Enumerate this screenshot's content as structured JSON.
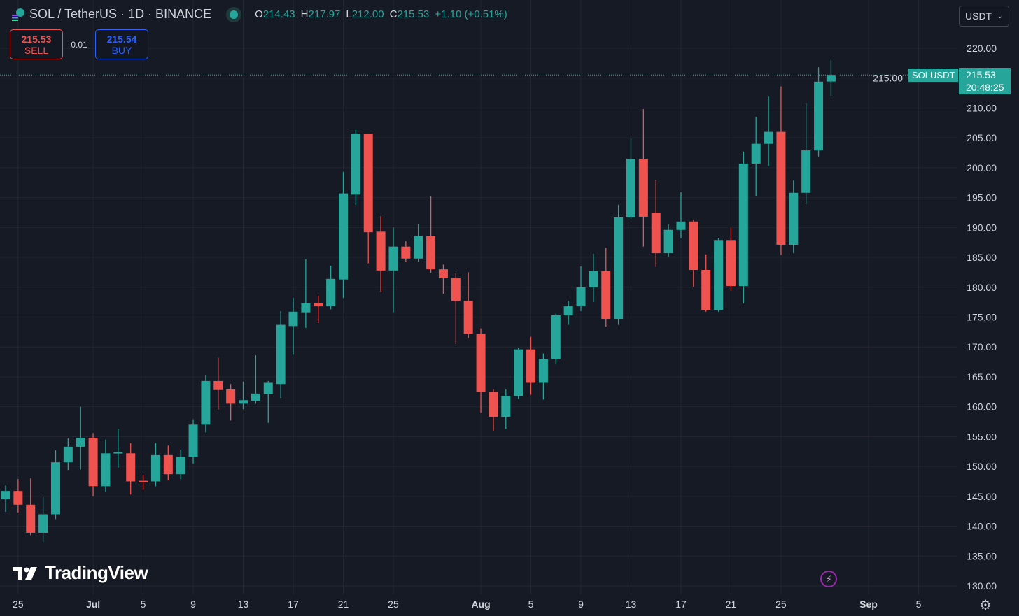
{
  "header": {
    "title": "SOL / TetherUS · 1D · BINANCE",
    "ohlc": {
      "o_label": "O",
      "o": "214.43",
      "h_label": "H",
      "h": "217.97",
      "l_label": "L",
      "l": "212.00",
      "c_label": "C",
      "c": "215.53",
      "change": "+1.10 (+0.51%)"
    }
  },
  "trade": {
    "sell_price": "215.53",
    "sell_label": "SELL",
    "spread": "0.01",
    "buy_price": "215.54",
    "buy_label": "BUY"
  },
  "currency_select": "USDT",
  "price_tag": {
    "symbol": "SOLUSDT",
    "price": "215.53",
    "countdown": "20:48:25"
  },
  "logo": "TradingView",
  "icons": {
    "lightning": "lightning-icon",
    "settings": "gear-icon",
    "symbol": "solana-icon",
    "chevron": "chevron-down-icon"
  },
  "colors": {
    "background": "#161a25",
    "up": "#26a69a",
    "down": "#ef5350",
    "grid": "#232632",
    "buy": "#2962ff"
  },
  "chart_data": {
    "type": "candlestick",
    "title": "SOL / TetherUS · 1D · BINANCE",
    "ylim": [
      130,
      220
    ],
    "grid": true,
    "yticks": [
      "130.00",
      "135.00",
      "140.00",
      "145.00",
      "150.00",
      "155.00",
      "160.00",
      "165.00",
      "170.00",
      "175.00",
      "180.00",
      "185.00",
      "190.00",
      "195.00",
      "200.00",
      "205.00",
      "210.00",
      "215.00",
      "220.00"
    ],
    "xticks": [
      {
        "label": "25",
        "date": "Jun 25"
      },
      {
        "label": "Jul",
        "date": "Jul 1"
      },
      {
        "label": "5",
        "date": "Jul 5"
      },
      {
        "label": "9",
        "date": "Jul 9"
      },
      {
        "label": "13",
        "date": "Jul 13"
      },
      {
        "label": "17",
        "date": "Jul 17"
      },
      {
        "label": "21",
        "date": "Jul 21"
      },
      {
        "label": "25",
        "date": "Jul 25"
      },
      {
        "label": "Aug",
        "date": "Aug 1"
      },
      {
        "label": "5",
        "date": "Aug 5"
      },
      {
        "label": "9",
        "date": "Aug 9"
      },
      {
        "label": "13",
        "date": "Aug 13"
      },
      {
        "label": "17",
        "date": "Aug 17"
      },
      {
        "label": "21",
        "date": "Aug 21"
      },
      {
        "label": "25",
        "date": "Aug 25"
      },
      {
        "label": "Sep",
        "date": "Sep 1"
      },
      {
        "label": "5",
        "date": "Sep 5"
      }
    ],
    "last_price": 215.53,
    "candles_fields": [
      "date",
      "open",
      "high",
      "low",
      "close"
    ],
    "candles": [
      [
        "Jun 24",
        144.5,
        146.8,
        142.4,
        145.9
      ],
      [
        "Jun 25",
        145.9,
        147.9,
        142.3,
        143.6
      ],
      [
        "Jun 26",
        143.6,
        148.0,
        138.5,
        138.9
      ],
      [
        "Jun 27",
        138.9,
        144.9,
        137.3,
        142.0
      ],
      [
        "Jun 28",
        142.0,
        152.7,
        141.2,
        150.7
      ],
      [
        "Jun 29",
        150.7,
        154.7,
        149.4,
        153.3
      ],
      [
        "Jun 30",
        153.3,
        160.0,
        149.5,
        154.8
      ],
      [
        "Jul 1",
        154.8,
        155.6,
        145.0,
        146.7
      ],
      [
        "Jul 2",
        146.7,
        154.5,
        145.8,
        152.2
      ],
      [
        "Jul 3",
        152.2,
        156.3,
        149.8,
        152.4
      ],
      [
        "Jul 4",
        152.2,
        153.9,
        145.3,
        147.5
      ],
      [
        "Jul 5",
        147.6,
        148.6,
        146.1,
        147.4
      ],
      [
        "Jul 6",
        147.5,
        153.9,
        146.7,
        151.9
      ],
      [
        "Jul 7",
        151.9,
        153.5,
        147.7,
        148.7
      ],
      [
        "Jul 8",
        148.7,
        152.8,
        147.9,
        151.6
      ],
      [
        "Jul 9",
        151.6,
        157.9,
        150.5,
        157.0
      ],
      [
        "Jul 10",
        157.0,
        165.3,
        155.7,
        164.3
      ],
      [
        "Jul 11",
        164.3,
        168.2,
        159.5,
        162.8
      ],
      [
        "Jul 12",
        162.9,
        163.8,
        157.7,
        160.5
      ],
      [
        "Jul 13",
        160.5,
        164.2,
        159.6,
        161.1
      ],
      [
        "Jul 14",
        161.0,
        168.6,
        160.5,
        162.2
      ],
      [
        "Jul 15",
        162.1,
        164.3,
        157.3,
        164.0
      ],
      [
        "Jul 16",
        163.8,
        176.0,
        161.5,
        173.7
      ],
      [
        "Jul 17",
        173.5,
        178.2,
        168.7,
        175.9
      ],
      [
        "Jul 18",
        175.8,
        184.7,
        173.2,
        177.3
      ],
      [
        "Jul 19",
        177.3,
        178.6,
        174.0,
        176.8
      ],
      [
        "Jul 20",
        176.8,
        183.6,
        176.3,
        181.4
      ],
      [
        "Jul 21",
        181.3,
        199.3,
        178.2,
        195.7
      ],
      [
        "Jul 22",
        195.5,
        206.3,
        193.8,
        205.7
      ],
      [
        "Jul 23",
        205.7,
        205.7,
        184.0,
        189.2
      ],
      [
        "Jul 24",
        189.3,
        191.9,
        179.2,
        182.8
      ],
      [
        "Jul 25",
        182.8,
        190.0,
        175.8,
        186.8
      ],
      [
        "Jul 26",
        186.8,
        187.7,
        184.2,
        184.8
      ],
      [
        "Jul 27",
        184.8,
        190.6,
        184.3,
        188.6
      ],
      [
        "Jul 28",
        188.6,
        195.2,
        182.4,
        183.0
      ],
      [
        "Jul 29",
        183.0,
        183.8,
        178.9,
        181.5
      ],
      [
        "Jul 30",
        181.5,
        182.3,
        170.5,
        177.7
      ],
      [
        "Jul 31",
        177.7,
        182.5,
        171.5,
        172.2
      ],
      [
        "Aug 1",
        172.2,
        173.1,
        159.0,
        162.5
      ],
      [
        "Aug 2",
        162.5,
        162.9,
        156.0,
        158.3
      ],
      [
        "Aug 3",
        158.3,
        162.9,
        156.3,
        161.8
      ],
      [
        "Aug 4",
        161.8,
        169.9,
        161.3,
        169.6
      ],
      [
        "Aug 5",
        169.6,
        171.7,
        162.0,
        164.0
      ],
      [
        "Aug 6",
        164.0,
        168.9,
        161.2,
        168.0
      ],
      [
        "Aug 7",
        168.0,
        175.6,
        167.2,
        175.3
      ],
      [
        "Aug 8",
        175.3,
        177.7,
        173.7,
        176.8
      ],
      [
        "Aug 9",
        176.8,
        183.5,
        176.0,
        180.0
      ],
      [
        "Aug 10",
        180.0,
        185.6,
        177.5,
        182.7
      ],
      [
        "Aug 11",
        182.7,
        186.6,
        173.4,
        174.7
      ],
      [
        "Aug 12",
        174.7,
        193.8,
        173.7,
        191.7
      ],
      [
        "Aug 13",
        191.7,
        204.9,
        191.4,
        201.5
      ],
      [
        "Aug 14",
        201.5,
        209.8,
        186.8,
        191.8
      ],
      [
        "Aug 15",
        192.5,
        198.0,
        183.4,
        185.7
      ],
      [
        "Aug 16",
        185.7,
        190.5,
        185.1,
        189.6
      ],
      [
        "Aug 17",
        189.6,
        195.9,
        188.2,
        191.0
      ],
      [
        "Aug 18",
        191.0,
        191.3,
        180.1,
        182.9
      ],
      [
        "Aug 19",
        182.9,
        185.5,
        175.9,
        176.2
      ],
      [
        "Aug 20",
        176.2,
        188.2,
        175.9,
        187.9
      ],
      [
        "Aug 21",
        187.9,
        189.9,
        179.4,
        180.2
      ],
      [
        "Aug 22",
        180.2,
        202.7,
        177.3,
        200.7
      ],
      [
        "Aug 23",
        200.7,
        208.5,
        195.3,
        204.0
      ],
      [
        "Aug 24",
        204.0,
        211.9,
        200.3,
        206.0
      ],
      [
        "Aug 25",
        206.0,
        213.6,
        185.4,
        187.1
      ],
      [
        "Aug 26",
        187.1,
        197.9,
        185.7,
        195.8
      ],
      [
        "Aug 27",
        195.8,
        210.8,
        193.9,
        202.9
      ],
      [
        "Aug 28",
        202.9,
        216.8,
        201.9,
        214.4
      ],
      [
        "Aug 29",
        214.43,
        217.97,
        212.0,
        215.53
      ]
    ]
  }
}
